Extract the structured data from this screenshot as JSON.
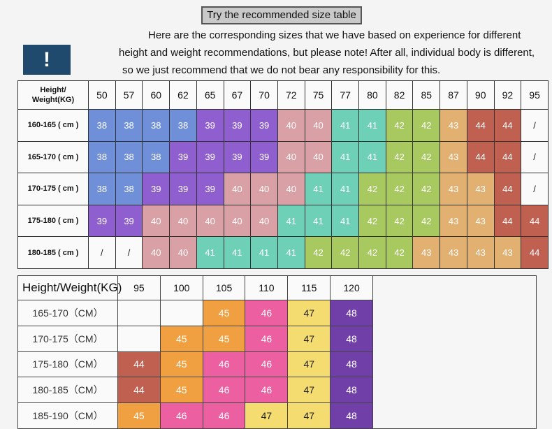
{
  "title": "Try the recommended size table",
  "notice": {
    "line1": "Here are the corresponding sizes that we have based on experience for different",
    "line2": "height and weight recommendations, but please note! After all, individual body is different,",
    "line3": "so we just recommend that we do not bear any responsibility for this."
  },
  "warning_symbol": "!",
  "colors": {
    "blue": "#6f8fd8",
    "purple": "#8f5fcf",
    "mauve": "#d9a0a6",
    "teal": "#6fd0b8",
    "lime": "#a8c860",
    "tan": "#e2b070",
    "brick": "#c06050",
    "orange": "#f0a040",
    "pink": "#ec5fa0",
    "yellow": "#f4dc70",
    "violet": "#7040a8"
  },
  "table1": {
    "corner_line1": "Height/",
    "corner_line2": "Weight(KG)",
    "weights": [
      "50",
      "57",
      "60",
      "62",
      "65",
      "67",
      "70",
      "72",
      "75",
      "77",
      "80",
      "82",
      "85",
      "87",
      "90",
      "92",
      "95"
    ],
    "rows": [
      {
        "label": "160-165 ( cm )",
        "cells": [
          {
            "v": "38",
            "c": "blue"
          },
          {
            "v": "38",
            "c": "blue"
          },
          {
            "v": "38",
            "c": "blue"
          },
          {
            "v": "38",
            "c": "blue"
          },
          {
            "v": "39",
            "c": "purple"
          },
          {
            "v": "39",
            "c": "purple"
          },
          {
            "v": "39",
            "c": "purple"
          },
          {
            "v": "40",
            "c": "mauve"
          },
          {
            "v": "40",
            "c": "mauve"
          },
          {
            "v": "41",
            "c": "teal"
          },
          {
            "v": "41",
            "c": "teal"
          },
          {
            "v": "42",
            "c": "lime"
          },
          {
            "v": "42",
            "c": "lime"
          },
          {
            "v": "43",
            "c": "tan"
          },
          {
            "v": "44",
            "c": "brick"
          },
          {
            "v": "44",
            "c": "brick"
          },
          {
            "v": "/",
            "c": "none"
          }
        ]
      },
      {
        "label": "165-170 ( cm )",
        "cells": [
          {
            "v": "38",
            "c": "blue"
          },
          {
            "v": "38",
            "c": "blue"
          },
          {
            "v": "38",
            "c": "blue"
          },
          {
            "v": "39",
            "c": "purple"
          },
          {
            "v": "39",
            "c": "purple"
          },
          {
            "v": "39",
            "c": "purple"
          },
          {
            "v": "39",
            "c": "purple"
          },
          {
            "v": "40",
            "c": "mauve"
          },
          {
            "v": "40",
            "c": "mauve"
          },
          {
            "v": "41",
            "c": "teal"
          },
          {
            "v": "41",
            "c": "teal"
          },
          {
            "v": "42",
            "c": "lime"
          },
          {
            "v": "42",
            "c": "lime"
          },
          {
            "v": "43",
            "c": "tan"
          },
          {
            "v": "44",
            "c": "brick"
          },
          {
            "v": "44",
            "c": "brick"
          },
          {
            "v": "/",
            "c": "none"
          }
        ]
      },
      {
        "label": "170-175 ( cm )",
        "cells": [
          {
            "v": "38",
            "c": "blue"
          },
          {
            "v": "38",
            "c": "blue"
          },
          {
            "v": "39",
            "c": "purple"
          },
          {
            "v": "39",
            "c": "purple"
          },
          {
            "v": "39",
            "c": "purple"
          },
          {
            "v": "40",
            "c": "mauve"
          },
          {
            "v": "40",
            "c": "mauve"
          },
          {
            "v": "40",
            "c": "mauve"
          },
          {
            "v": "41",
            "c": "teal"
          },
          {
            "v": "41",
            "c": "teal"
          },
          {
            "v": "42",
            "c": "lime"
          },
          {
            "v": "42",
            "c": "lime"
          },
          {
            "v": "42",
            "c": "lime"
          },
          {
            "v": "43",
            "c": "tan"
          },
          {
            "v": "43",
            "c": "tan"
          },
          {
            "v": "44",
            "c": "brick"
          },
          {
            "v": "/",
            "c": "none"
          }
        ]
      },
      {
        "label": "175-180 ( cm )",
        "cells": [
          {
            "v": "39",
            "c": "purple"
          },
          {
            "v": "39",
            "c": "purple"
          },
          {
            "v": "40",
            "c": "mauve"
          },
          {
            "v": "40",
            "c": "mauve"
          },
          {
            "v": "40",
            "c": "mauve"
          },
          {
            "v": "40",
            "c": "mauve"
          },
          {
            "v": "40",
            "c": "mauve"
          },
          {
            "v": "41",
            "c": "teal"
          },
          {
            "v": "41",
            "c": "teal"
          },
          {
            "v": "41",
            "c": "teal"
          },
          {
            "v": "42",
            "c": "lime"
          },
          {
            "v": "42",
            "c": "lime"
          },
          {
            "v": "42",
            "c": "lime"
          },
          {
            "v": "43",
            "c": "tan"
          },
          {
            "v": "43",
            "c": "tan"
          },
          {
            "v": "44",
            "c": "brick"
          },
          {
            "v": "44",
            "c": "brick"
          }
        ]
      },
      {
        "label": "180-185 ( cm )",
        "cells": [
          {
            "v": "/",
            "c": "none"
          },
          {
            "v": "/",
            "c": "none"
          },
          {
            "v": "40",
            "c": "mauve"
          },
          {
            "v": "40",
            "c": "mauve"
          },
          {
            "v": "41",
            "c": "teal"
          },
          {
            "v": "41",
            "c": "teal"
          },
          {
            "v": "41",
            "c": "teal"
          },
          {
            "v": "41",
            "c": "teal"
          },
          {
            "v": "42",
            "c": "lime"
          },
          {
            "v": "42",
            "c": "lime"
          },
          {
            "v": "42",
            "c": "lime"
          },
          {
            "v": "42",
            "c": "lime"
          },
          {
            "v": "43",
            "c": "tan"
          },
          {
            "v": "43",
            "c": "tan"
          },
          {
            "v": "43",
            "c": "tan"
          },
          {
            "v": "43",
            "c": "tan"
          },
          {
            "v": "44",
            "c": "brick"
          }
        ]
      }
    ]
  },
  "table2": {
    "corner": "Height/Weight(KG)",
    "weights": [
      "95",
      "100",
      "105",
      "110",
      "115",
      "120"
    ],
    "rows": [
      {
        "label": "165-170（CM）",
        "cells": [
          {
            "v": "",
            "c": "none"
          },
          {
            "v": "",
            "c": "none"
          },
          {
            "v": "45",
            "c": "orange"
          },
          {
            "v": "46",
            "c": "pink"
          },
          {
            "v": "47",
            "c": "yellow"
          },
          {
            "v": "48",
            "c": "violet"
          }
        ]
      },
      {
        "label": "170-175（CM）",
        "cells": [
          {
            "v": "",
            "c": "none"
          },
          {
            "v": "45",
            "c": "orange"
          },
          {
            "v": "45",
            "c": "orange"
          },
          {
            "v": "46",
            "c": "pink"
          },
          {
            "v": "47",
            "c": "yellow"
          },
          {
            "v": "48",
            "c": "violet"
          }
        ]
      },
      {
        "label": "175-180（CM）",
        "cells": [
          {
            "v": "44",
            "c": "brick"
          },
          {
            "v": "45",
            "c": "orange"
          },
          {
            "v": "46",
            "c": "pink"
          },
          {
            "v": "46",
            "c": "pink"
          },
          {
            "v": "47",
            "c": "yellow"
          },
          {
            "v": "48",
            "c": "violet"
          }
        ]
      },
      {
        "label": "180-185（CM）",
        "cells": [
          {
            "v": "44",
            "c": "brick"
          },
          {
            "v": "45",
            "c": "orange"
          },
          {
            "v": "46",
            "c": "pink"
          },
          {
            "v": "46",
            "c": "pink"
          },
          {
            "v": "47",
            "c": "yellow"
          },
          {
            "v": "48",
            "c": "violet"
          }
        ]
      },
      {
        "label": "185-190（CM）",
        "cells": [
          {
            "v": "45",
            "c": "orange"
          },
          {
            "v": "46",
            "c": "pink"
          },
          {
            "v": "46",
            "c": "pink"
          },
          {
            "v": "47",
            "c": "yellow"
          },
          {
            "v": "47",
            "c": "yellow"
          },
          {
            "v": "48",
            "c": "violet"
          }
        ]
      }
    ]
  }
}
